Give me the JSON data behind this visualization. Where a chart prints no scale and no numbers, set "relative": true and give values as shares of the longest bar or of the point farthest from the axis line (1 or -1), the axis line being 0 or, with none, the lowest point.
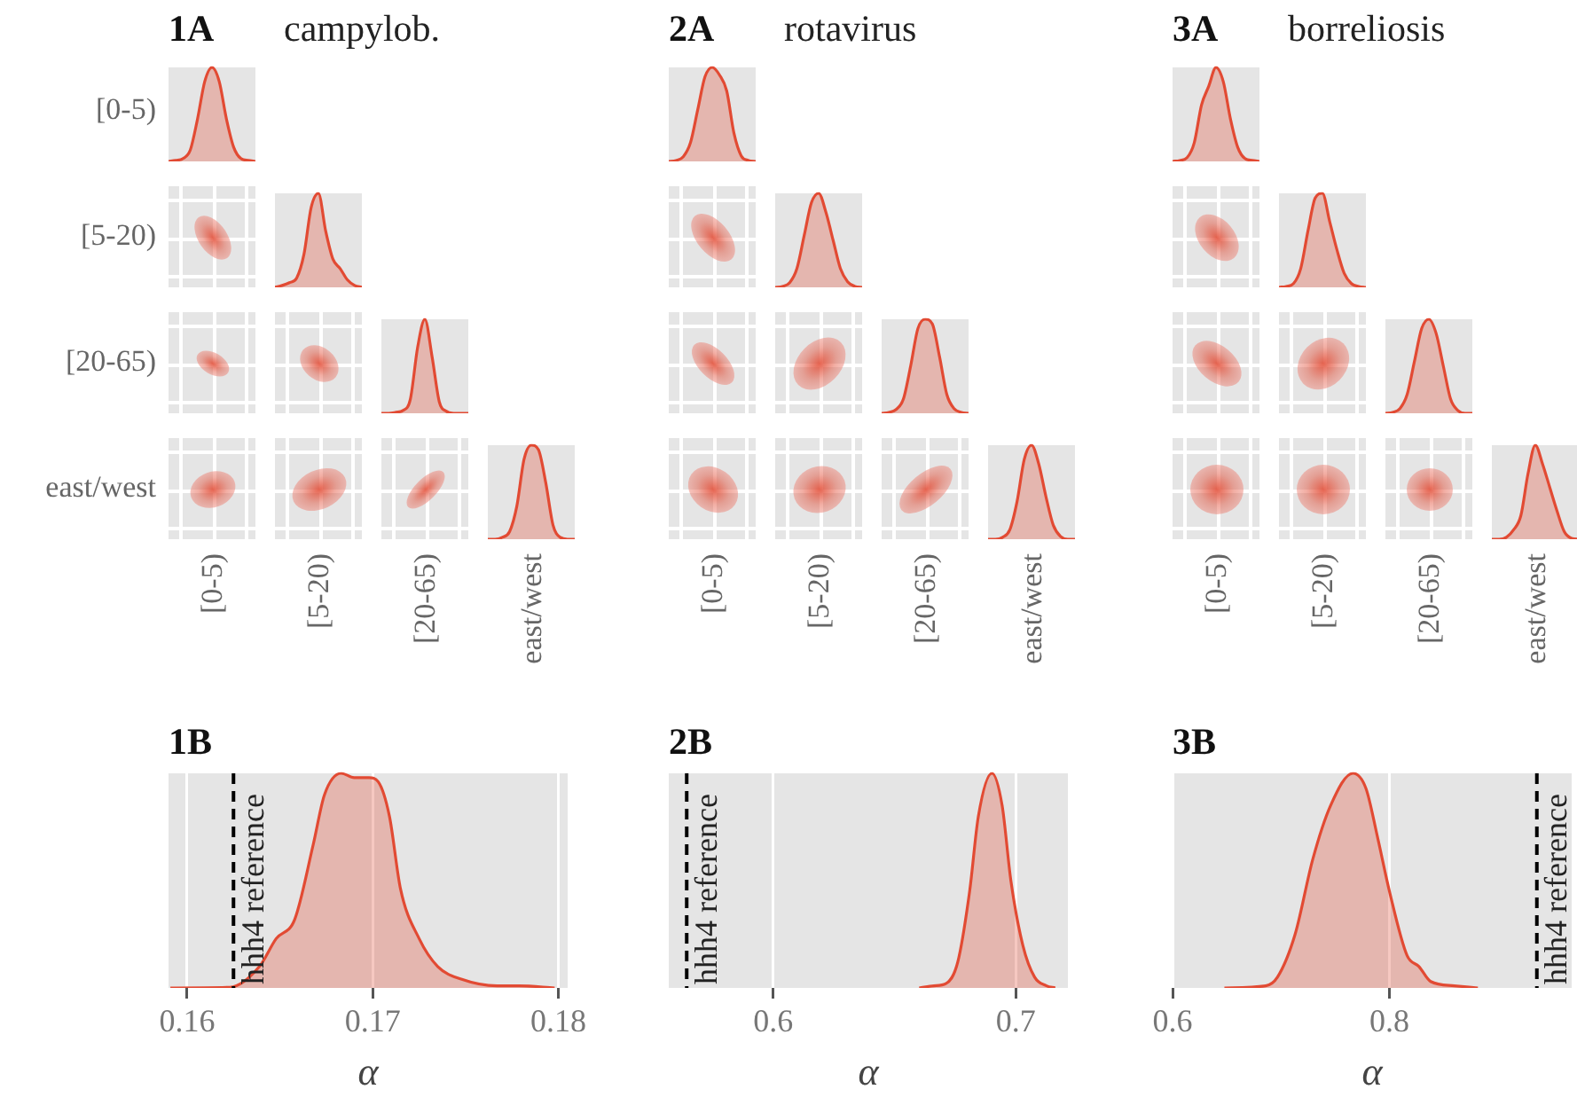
{
  "chart_data": [
    {
      "type": "other",
      "title": "1A",
      "subtitle": "campylob.",
      "categories": [
        "[0-5)",
        "[5-20)",
        "[20-65)",
        "east/west"
      ],
      "y_categories": [
        "[0-5)",
        "[5-20)",
        "[20-65)",
        "east/west"
      ]
    },
    {
      "type": "area",
      "relative": true,
      "color": "#e24a33",
      "categories": [
        null,
        null,
        null,
        null,
        null,
        null,
        null,
        null,
        null,
        null,
        null,
        null,
        null
      ],
      "values": [
        0,
        0.01,
        0.03,
        0.12,
        0.45,
        0.85,
        1,
        0.85,
        0.45,
        0.15,
        0.03,
        0.01,
        0
      ]
    },
    {
      "type": "area",
      "relative": true,
      "color": "#e24a33",
      "categories": [
        null,
        null,
        null,
        null,
        null,
        null,
        null,
        null,
        null,
        null,
        null,
        null,
        null
      ],
      "values": [
        0,
        0.02,
        0.05,
        0.1,
        0.35,
        0.85,
        1,
        0.6,
        0.3,
        0.2,
        0.08,
        0.02,
        0
      ]
    },
    {
      "type": "area",
      "relative": true,
      "color": "#e24a33",
      "categories": [
        null,
        null,
        null,
        null,
        null,
        null,
        null,
        null,
        null,
        null,
        null,
        null,
        null
      ],
      "values": [
        0,
        0,
        0.01,
        0.03,
        0.15,
        0.7,
        1,
        0.6,
        0.12,
        0.02,
        0,
        0,
        0
      ]
    },
    {
      "type": "area",
      "relative": true,
      "color": "#e24a33",
      "categories": [
        null,
        null,
        null,
        null,
        null,
        null,
        null,
        null,
        null,
        null,
        null,
        null,
        null
      ],
      "values": [
        0,
        0,
        0.02,
        0.08,
        0.35,
        0.85,
        1,
        0.95,
        0.6,
        0.15,
        0.02,
        0,
        0
      ]
    },
    {
      "type": "other",
      "title": "2A",
      "subtitle": "rotavirus",
      "categories": [
        "[0-5)",
        "[5-20)",
        "[20-65)",
        "east/west"
      ]
    },
    {
      "type": "area",
      "relative": true,
      "color": "#e24a33",
      "categories": [
        null,
        null,
        null,
        null,
        null,
        null,
        null,
        null,
        null,
        null,
        null,
        null,
        null
      ],
      "values": [
        0,
        0.01,
        0.05,
        0.2,
        0.55,
        0.9,
        1,
        0.92,
        0.75,
        0.3,
        0.06,
        0.01,
        0
      ]
    },
    {
      "type": "area",
      "relative": true,
      "color": "#e24a33",
      "categories": [
        null,
        null,
        null,
        null,
        null,
        null,
        null,
        null,
        null,
        null,
        null,
        null,
        null
      ],
      "values": [
        0,
        0.01,
        0.05,
        0.2,
        0.55,
        0.9,
        1,
        0.8,
        0.5,
        0.2,
        0.06,
        0.01,
        0
      ]
    },
    {
      "type": "area",
      "relative": true,
      "color": "#e24a33",
      "categories": [
        null,
        null,
        null,
        null,
        null,
        null,
        null,
        null,
        null,
        null,
        null,
        null,
        null
      ],
      "values": [
        0,
        0.01,
        0.04,
        0.15,
        0.5,
        0.9,
        1,
        0.95,
        0.6,
        0.2,
        0.05,
        0.01,
        0
      ]
    },
    {
      "type": "area",
      "relative": true,
      "color": "#e24a33",
      "categories": [
        null,
        null,
        null,
        null,
        null,
        null,
        null,
        null,
        null,
        null,
        null,
        null,
        null
      ],
      "values": [
        0,
        0,
        0.02,
        0.1,
        0.4,
        0.85,
        1,
        0.8,
        0.45,
        0.15,
        0.03,
        0,
        0
      ]
    },
    {
      "type": "other",
      "title": "3A",
      "subtitle": "borreliosis",
      "categories": [
        "[0-5)",
        "[5-20)",
        "[20-65)",
        "east/west"
      ]
    },
    {
      "type": "area",
      "relative": true,
      "color": "#e24a33",
      "categories": [
        null,
        null,
        null,
        null,
        null,
        null,
        null,
        null,
        null,
        null,
        null,
        null,
        null
      ],
      "values": [
        0,
        0.01,
        0.04,
        0.2,
        0.6,
        0.8,
        1,
        0.85,
        0.45,
        0.15,
        0.03,
        0.01,
        0
      ]
    },
    {
      "type": "area",
      "relative": true,
      "color": "#e24a33",
      "categories": [
        null,
        null,
        null,
        null,
        null,
        null,
        null,
        null,
        null,
        null,
        null,
        null,
        null
      ],
      "values": [
        0,
        0.01,
        0.04,
        0.2,
        0.6,
        0.95,
        1,
        0.7,
        0.4,
        0.15,
        0.04,
        0.01,
        0
      ]
    },
    {
      "type": "area",
      "relative": true,
      "color": "#e24a33",
      "categories": [
        null,
        null,
        null,
        null,
        null,
        null,
        null,
        null,
        null,
        null,
        null,
        null,
        null
      ],
      "values": [
        0,
        0.01,
        0.05,
        0.2,
        0.55,
        0.9,
        1,
        0.85,
        0.5,
        0.15,
        0.03,
        0,
        0
      ]
    },
    {
      "type": "area",
      "relative": true,
      "color": "#e24a33",
      "categories": [
        null,
        null,
        null,
        null,
        null,
        null,
        null,
        null,
        null,
        null,
        null,
        null,
        null
      ],
      "values": [
        0,
        0,
        0.02,
        0.1,
        0.25,
        0.7,
        1,
        0.8,
        0.55,
        0.3,
        0.08,
        0.01,
        0
      ]
    },
    {
      "type": "area",
      "title": "1B",
      "xlabel": "α",
      "relative": true,
      "color": "#e24a33",
      "grid": "x",
      "tick_labels": "x",
      "xlim": [
        0.159,
        0.1805
      ],
      "xticks": [
        0.16,
        0.17,
        0.18
      ],
      "x": [
        0.1591,
        0.1623,
        0.1639,
        0.1648,
        0.1658,
        0.1668,
        0.1674,
        0.1683,
        0.169,
        0.1698,
        0.1703,
        0.1709,
        0.1715,
        0.1725,
        0.1735,
        0.1748,
        0.1767,
        0.1779,
        0.1798
      ],
      "values": [
        0,
        0.003,
        0.1,
        0.23,
        0.32,
        0.67,
        0.9,
        1,
        0.98,
        0.98,
        0.96,
        0.8,
        0.46,
        0.23,
        0.1,
        0.04,
        0.01,
        0.01,
        0
      ],
      "ref_lines": [
        {
          "axis": "x",
          "value": 0.1625,
          "label": "hhh4 reference",
          "color": "#000000",
          "line_style": "dashed"
        }
      ]
    },
    {
      "type": "area",
      "title": "2B",
      "xlabel": "α",
      "relative": true,
      "color": "#e24a33",
      "grid": "x",
      "tick_labels": "x",
      "xlim": [
        0.557,
        0.7215
      ],
      "xticks": [
        0.6,
        0.7
      ],
      "x": [
        0.6602,
        0.6663,
        0.6712,
        0.6761,
        0.681,
        0.6846,
        0.6902,
        0.6944,
        0.698,
        0.7029,
        0.7078,
        0.7127,
        0.7163
      ],
      "values": [
        0,
        0.01,
        0.02,
        0.12,
        0.45,
        0.8,
        1,
        0.85,
        0.5,
        0.2,
        0.05,
        0.01,
        0
      ],
      "ref_lines": [
        {
          "axis": "x",
          "value": 0.5644,
          "label": "hhh4 reference",
          "color": "#000000",
          "line_style": "dashed"
        }
      ]
    },
    {
      "type": "area",
      "title": "3B",
      "xlabel": "α",
      "relative": true,
      "color": "#e24a33",
      "grid": "x",
      "tick_labels": "x",
      "xlim": [
        0.6,
        0.968
      ],
      "xticks": [
        0.6,
        0.8
      ],
      "x": [
        0.6478,
        0.6859,
        0.6967,
        0.713,
        0.7293,
        0.7457,
        0.7663,
        0.7783,
        0.7891,
        0.8,
        0.8163,
        0.8272,
        0.838,
        0.8598,
        0.8815
      ],
      "values": [
        0,
        0.01,
        0.05,
        0.25,
        0.6,
        0.85,
        1,
        0.93,
        0.7,
        0.45,
        0.15,
        0.1,
        0.03,
        0.01,
        0
      ],
      "ref_lines": [
        {
          "axis": "x",
          "value": 0.9359,
          "label": "hhh4 reference",
          "color": "#000000",
          "line_style": "dashed"
        }
      ]
    }
  ]
}
